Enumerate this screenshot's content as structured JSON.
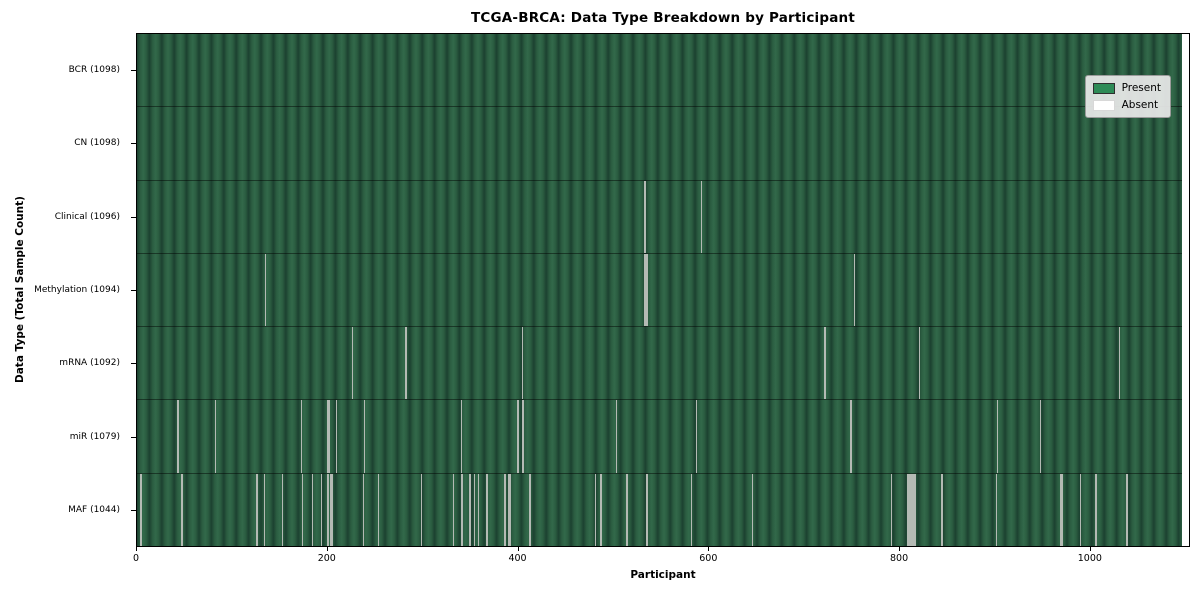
{
  "title": "TCGA-BRCA: Data Type Breakdown by Participant",
  "colors": {
    "present": "#2e8b57",
    "absent": "#ffffff",
    "gap_line": "#b4bab4",
    "stripe_light": "#32694a",
    "stripe_dark": "#1c4130",
    "legend_bg": "#eaeaea"
  },
  "chart_data": {
    "type": "heatmap",
    "title": "TCGA-BRCA: Data Type Breakdown by Participant",
    "xlabel": "Participant",
    "ylabel": "Data Type (Total Sample Count)",
    "x_range": [
      0,
      1105
    ],
    "n_participants": 1098,
    "x_ticks": [
      0,
      200,
      400,
      600,
      800,
      1000
    ],
    "grid": false,
    "legend_position": "upper right",
    "legend": [
      {
        "label": "Present",
        "color": "#2e8b57"
      },
      {
        "label": "Absent",
        "color": "#ffffff"
      }
    ],
    "rows": [
      {
        "name": "BCR",
        "total": 1098,
        "label": "BCR (1098)",
        "absent": []
      },
      {
        "name": "CN",
        "total": 1098,
        "label": "CN (1098)",
        "absent": []
      },
      {
        "name": "Clinical",
        "total": 1096,
        "label": "Clinical (1096)",
        "absent": [
          533,
          592
        ]
      },
      {
        "name": "Methylation",
        "total": 1094,
        "label": "Methylation (1094)",
        "absent": [
          134,
          533,
          535,
          753
        ]
      },
      {
        "name": "mRNA",
        "total": 1092,
        "label": "mRNA (1092)",
        "absent": [
          226,
          282,
          404,
          722,
          821,
          1031
        ]
      },
      {
        "name": "miR",
        "total": 1079,
        "label": "miR (1079)",
        "absent": [
          42,
          43,
          82,
          172,
          200,
          201,
          209,
          238,
          340,
          399,
          400,
          404,
          405,
          503,
          587,
          749,
          750,
          903,
          948
        ]
      },
      {
        "name": "MAF",
        "total": 1044,
        "label": "MAF (1044)",
        "absent": [
          3,
          4,
          46,
          47,
          125,
          126,
          133,
          152,
          173,
          184,
          193,
          200,
          203,
          204,
          237,
          253,
          298,
          332,
          340,
          341,
          349,
          354,
          358,
          367,
          386,
          390,
          391,
          412,
          481,
          486,
          487,
          514,
          535,
          582,
          646,
          792,
          809,
          810,
          811,
          812,
          813,
          814,
          815,
          816,
          817,
          845,
          902,
          970,
          971,
          990,
          1006,
          1007,
          1039,
          1040
        ]
      }
    ]
  }
}
